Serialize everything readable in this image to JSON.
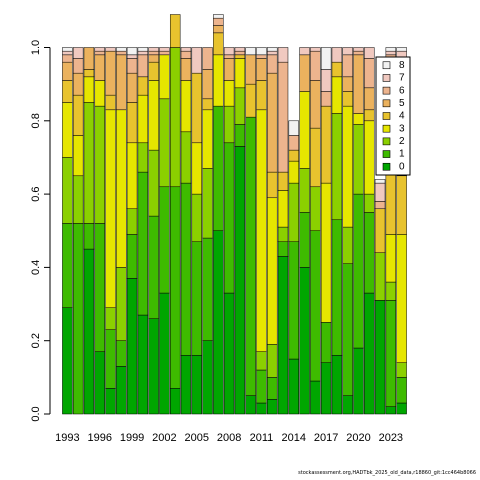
{
  "chart_data": {
    "type": "bar",
    "stacked": true,
    "title": "",
    "xlabel": "",
    "ylabel": "",
    "ylim": [
      0,
      1
    ],
    "yticks": [
      "0.0",
      "0.2",
      "0.4",
      "0.6",
      "0.8",
      "1.0"
    ],
    "ytick_values": [
      0,
      0.2,
      0.4,
      0.6,
      0.8,
      1.0
    ],
    "xticks": [
      "1993",
      "1996",
      "1999",
      "2002",
      "2005",
      "2008",
      "2011",
      "2014",
      "2017",
      "2020",
      "2023"
    ],
    "categories": [
      "1993",
      "1994",
      "1995",
      "1996",
      "1997",
      "1998",
      "1999",
      "2000",
      "2001",
      "2002",
      "2003",
      "2004",
      "2005",
      "2006",
      "2007",
      "2008",
      "2009",
      "2010",
      "2011",
      "2012",
      "2013",
      "2014",
      "2015",
      "2016",
      "2017",
      "2018",
      "2019",
      "2020",
      "2021",
      "2022",
      "2023",
      "2024"
    ],
    "legend_position": "right",
    "series": [
      {
        "name": "0",
        "color": "#00A600",
        "values": [
          0.29,
          0.0,
          0.45,
          0.17,
          0.07,
          0.13,
          0.37,
          0.27,
          0.26,
          0.33,
          0.07,
          0.16,
          0.16,
          0.2,
          0.5,
          0.33,
          0.73,
          0.05,
          0.03,
          0.04,
          0.43,
          0.15,
          0.4,
          0.09,
          0.14,
          0.16,
          0.05,
          0.18,
          0.33,
          0.31,
          0.02,
          0.03
        ]
      },
      {
        "name": "1",
        "color": "#3EBB00",
        "values": [
          0.23,
          0.52,
          0.07,
          0.35,
          0.16,
          0.07,
          0.12,
          0.39,
          0.28,
          0.29,
          0.55,
          0.47,
          0.31,
          0.28,
          0.34,
          0.41,
          0.06,
          0.76,
          0.09,
          0.06,
          0.04,
          0.32,
          0.15,
          0.41,
          0.11,
          0.37,
          0.36,
          0.42,
          0.22,
          0.0,
          0.29,
          0.07
        ]
      },
      {
        "name": "2",
        "color": "#8BD000",
        "values": [
          0.18,
          0.13,
          0.33,
          0.32,
          0.06,
          0.2,
          0.07,
          0.08,
          0.18,
          0.24,
          0.38,
          0.14,
          0.13,
          0.19,
          0.0,
          0.1,
          0.1,
          0.0,
          0.05,
          0.09,
          0.04,
          0.16,
          0.12,
          0.12,
          0.0,
          0.29,
          0.1,
          0.19,
          0.05,
          0.13,
          0.05,
          0.04
        ]
      },
      {
        "name": "3",
        "color": "#E6E600",
        "values": [
          0.15,
          0.11,
          0.07,
          0.07,
          0.54,
          0.43,
          0.18,
          0.13,
          0.19,
          0.12,
          0.0,
          0.14,
          0.14,
          0.16,
          0.14,
          0.07,
          0.08,
          0.0,
          0.66,
          0.4,
          0.1,
          0.06,
          0.21,
          0.0,
          0.38,
          0.1,
          0.33,
          0.03,
          0.2,
          0.0,
          0.13,
          0.35
        ]
      },
      {
        "name": "4",
        "color": "#E8C32E",
        "values": [
          0.06,
          0.11,
          0.02,
          0.0,
          0.04,
          0.0,
          0.11,
          0.05,
          0.05,
          0.0,
          0.09,
          0.0,
          0.19,
          0.03,
          0.06,
          0.0,
          0.01,
          0.09,
          0.08,
          0.07,
          0.05,
          0.03,
          0.0,
          0.16,
          0.21,
          0.04,
          0.04,
          0.0,
          0.03,
          0.12,
          0.2,
          0.16
        ]
      },
      {
        "name": "5",
        "color": "#EBB25E",
        "values": [
          0.05,
          0.06,
          0.06,
          0.07,
          0.12,
          0.15,
          0.08,
          0.0,
          0.02,
          0.0,
          0.0,
          0.06,
          0.0,
          0.08,
          0.02,
          0.06,
          0.0,
          0.08,
          0.06,
          0.27,
          0.0,
          0.0,
          0.1,
          0.13,
          0.0,
          0.0,
          0.04,
          0.16,
          0.06,
          0.0,
          0.28,
          0.02
        ]
      },
      {
        "name": "6",
        "color": "#EDB48E",
        "values": [
          0.02,
          0.04,
          0.0,
          0.01,
          0.0,
          0.01,
          0.04,
          0.06,
          0.01,
          0.01,
          0.0,
          0.02,
          0.0,
          0.06,
          0.02,
          0.01,
          0.01,
          0.0,
          0.01,
          0.05,
          0.3,
          0.04,
          0.0,
          0.08,
          0.04,
          0.0,
          0.06,
          0.01,
          0.08,
          0.02,
          0.01,
          0.3
        ]
      },
      {
        "name": "7",
        "color": "#F0C9C0",
        "values": [
          0.01,
          0.03,
          0.0,
          0.01,
          0.01,
          0.0,
          0.01,
          0.01,
          0.01,
          0.01,
          0.0,
          0.01,
          0.07,
          0.0,
          0.0,
          0.02,
          0.01,
          0.0,
          0.0,
          0.01,
          0.04,
          0.0,
          0.02,
          0.01,
          0.06,
          0.04,
          0.02,
          0.01,
          0.03,
          0.05,
          0.01,
          0.02
        ]
      },
      {
        "name": "8",
        "color": "#F2F2F2",
        "values": [
          0.01,
          0.0,
          0.0,
          0.0,
          0.0,
          0.01,
          0.02,
          0.01,
          0.0,
          0.0,
          0.0,
          0.0,
          0.0,
          0.0,
          0.01,
          0.0,
          0.0,
          0.02,
          0.02,
          0.01,
          0.0,
          0.04,
          0.0,
          0.0,
          0.06,
          0.0,
          0.0,
          0.0,
          0.0,
          0.01,
          0.01,
          0.01
        ]
      }
    ]
  },
  "footnote": "stockassessment.org,HADTbk_2025_old_data,r18860_git:1cc464b8066"
}
